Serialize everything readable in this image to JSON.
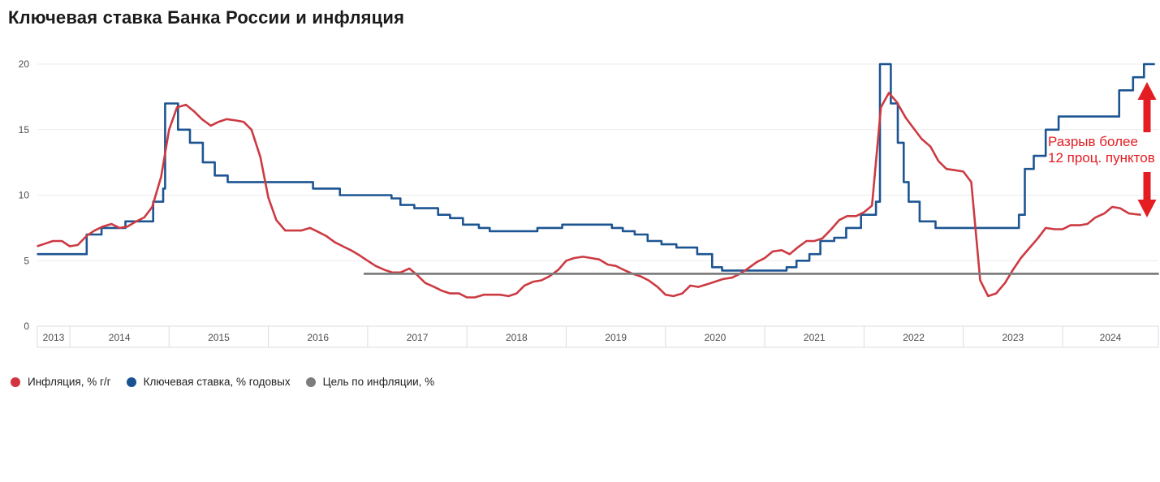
{
  "title": "Ключевая ставка Банка России и инфляция",
  "annotation": {
    "line1": "Разрыв более",
    "line2": "12 проц. пунктов",
    "color": "#e41d23"
  },
  "legend": {
    "position": "bottom",
    "items": [
      {
        "label": "Инфляция, % г/г",
        "color": "#d2353f"
      },
      {
        "label": "Ключевая ставка, % годовых",
        "color": "#1a5291"
      },
      {
        "label": "Цель по инфляции, %",
        "color": "#7d7d7d"
      }
    ]
  },
  "chart_data": {
    "type": "line",
    "title": "Ключевая ставка Банка России и инфляция",
    "grid": true,
    "x_axis": {
      "ticks": [
        2013,
        2014,
        2015,
        2016,
        2017,
        2018,
        2019,
        2020,
        2021,
        2022,
        2023,
        2024
      ],
      "range": [
        2013.67,
        2024.97
      ]
    },
    "y_axis": {
      "ticks": [
        0,
        5,
        10,
        15,
        20
      ],
      "range": [
        0,
        20
      ]
    },
    "series": [
      {
        "name": "Ключевая ставка, % годовых",
        "type": "step",
        "color": "#1d5592",
        "points": [
          [
            2013.67,
            5.5
          ],
          [
            2014.17,
            7.0
          ],
          [
            2014.32,
            7.5
          ],
          [
            2014.56,
            8.0
          ],
          [
            2014.84,
            9.5
          ],
          [
            2014.94,
            10.5
          ],
          [
            2014.96,
            17.0
          ],
          [
            2015.09,
            15.0
          ],
          [
            2015.21,
            14.0
          ],
          [
            2015.34,
            12.5
          ],
          [
            2015.46,
            11.5
          ],
          [
            2015.59,
            11.0
          ],
          [
            2016.45,
            10.5
          ],
          [
            2016.72,
            10.0
          ],
          [
            2017.24,
            9.75
          ],
          [
            2017.33,
            9.25
          ],
          [
            2017.47,
            9.0
          ],
          [
            2017.71,
            8.5
          ],
          [
            2017.83,
            8.25
          ],
          [
            2017.96,
            7.75
          ],
          [
            2018.12,
            7.5
          ],
          [
            2018.23,
            7.25
          ],
          [
            2018.71,
            7.5
          ],
          [
            2018.96,
            7.75
          ],
          [
            2019.46,
            7.5
          ],
          [
            2019.57,
            7.25
          ],
          [
            2019.69,
            7.0
          ],
          [
            2019.82,
            6.5
          ],
          [
            2019.96,
            6.25
          ],
          [
            2020.11,
            6.0
          ],
          [
            2020.32,
            5.5
          ],
          [
            2020.47,
            4.5
          ],
          [
            2020.57,
            4.25
          ],
          [
            2021.22,
            4.5
          ],
          [
            2021.32,
            5.0
          ],
          [
            2021.45,
            5.5
          ],
          [
            2021.56,
            6.5
          ],
          [
            2021.7,
            6.75
          ],
          [
            2021.82,
            7.5
          ],
          [
            2021.97,
            8.5
          ],
          [
            2022.12,
            9.5
          ],
          [
            2022.16,
            20.0
          ],
          [
            2022.27,
            17.0
          ],
          [
            2022.34,
            14.0
          ],
          [
            2022.4,
            11.0
          ],
          [
            2022.45,
            9.5
          ],
          [
            2022.56,
            8.0
          ],
          [
            2022.72,
            7.5
          ],
          [
            2023.56,
            8.5
          ],
          [
            2023.62,
            12.0
          ],
          [
            2023.71,
            13.0
          ],
          [
            2023.83,
            15.0
          ],
          [
            2023.96,
            16.0
          ],
          [
            2024.57,
            18.0
          ],
          [
            2024.71,
            19.0
          ],
          [
            2024.82,
            20.0
          ],
          [
            2024.93,
            20.0
          ]
        ]
      },
      {
        "name": "Инфляция, % г/г",
        "type": "line",
        "color": "#cc3a42",
        "points": [
          [
            2013.67,
            6.1
          ],
          [
            2013.75,
            6.3
          ],
          [
            2013.83,
            6.5
          ],
          [
            2013.92,
            6.5
          ],
          [
            2014.0,
            6.1
          ],
          [
            2014.08,
            6.2
          ],
          [
            2014.17,
            6.9
          ],
          [
            2014.25,
            7.3
          ],
          [
            2014.33,
            7.6
          ],
          [
            2014.42,
            7.8
          ],
          [
            2014.5,
            7.5
          ],
          [
            2014.58,
            7.6
          ],
          [
            2014.67,
            8.0
          ],
          [
            2014.75,
            8.3
          ],
          [
            2014.83,
            9.1
          ],
          [
            2014.92,
            11.4
          ],
          [
            2015.0,
            15.0
          ],
          [
            2015.08,
            16.7
          ],
          [
            2015.17,
            16.9
          ],
          [
            2015.25,
            16.4
          ],
          [
            2015.33,
            15.8
          ],
          [
            2015.42,
            15.3
          ],
          [
            2015.5,
            15.6
          ],
          [
            2015.58,
            15.8
          ],
          [
            2015.67,
            15.7
          ],
          [
            2015.75,
            15.6
          ],
          [
            2015.83,
            15.0
          ],
          [
            2015.92,
            12.9
          ],
          [
            2016.0,
            9.8
          ],
          [
            2016.08,
            8.1
          ],
          [
            2016.17,
            7.3
          ],
          [
            2016.25,
            7.3
          ],
          [
            2016.33,
            7.3
          ],
          [
            2016.42,
            7.5
          ],
          [
            2016.5,
            7.2
          ],
          [
            2016.58,
            6.9
          ],
          [
            2016.67,
            6.4
          ],
          [
            2016.75,
            6.1
          ],
          [
            2016.83,
            5.8
          ],
          [
            2016.92,
            5.4
          ],
          [
            2017.0,
            5.0
          ],
          [
            2017.08,
            4.6
          ],
          [
            2017.17,
            4.3
          ],
          [
            2017.25,
            4.1
          ],
          [
            2017.33,
            4.1
          ],
          [
            2017.42,
            4.4
          ],
          [
            2017.5,
            3.9
          ],
          [
            2017.58,
            3.3
          ],
          [
            2017.67,
            3.0
          ],
          [
            2017.75,
            2.7
          ],
          [
            2017.83,
            2.5
          ],
          [
            2017.92,
            2.5
          ],
          [
            2018.0,
            2.2
          ],
          [
            2018.08,
            2.2
          ],
          [
            2018.17,
            2.4
          ],
          [
            2018.25,
            2.4
          ],
          [
            2018.33,
            2.4
          ],
          [
            2018.42,
            2.3
          ],
          [
            2018.5,
            2.5
          ],
          [
            2018.58,
            3.1
          ],
          [
            2018.67,
            3.4
          ],
          [
            2018.75,
            3.5
          ],
          [
            2018.83,
            3.8
          ],
          [
            2018.92,
            4.3
          ],
          [
            2019.0,
            5.0
          ],
          [
            2019.08,
            5.2
          ],
          [
            2019.17,
            5.3
          ],
          [
            2019.25,
            5.2
          ],
          [
            2019.33,
            5.1
          ],
          [
            2019.42,
            4.7
          ],
          [
            2019.5,
            4.6
          ],
          [
            2019.58,
            4.3
          ],
          [
            2019.67,
            4.0
          ],
          [
            2019.75,
            3.8
          ],
          [
            2019.83,
            3.5
          ],
          [
            2019.92,
            3.0
          ],
          [
            2020.0,
            2.4
          ],
          [
            2020.08,
            2.3
          ],
          [
            2020.17,
            2.5
          ],
          [
            2020.25,
            3.1
          ],
          [
            2020.33,
            3.0
          ],
          [
            2020.42,
            3.2
          ],
          [
            2020.5,
            3.4
          ],
          [
            2020.58,
            3.6
          ],
          [
            2020.67,
            3.7
          ],
          [
            2020.75,
            4.0
          ],
          [
            2020.83,
            4.4
          ],
          [
            2020.92,
            4.9
          ],
          [
            2021.0,
            5.2
          ],
          [
            2021.08,
            5.7
          ],
          [
            2021.17,
            5.8
          ],
          [
            2021.25,
            5.5
          ],
          [
            2021.33,
            6.0
          ],
          [
            2021.42,
            6.5
          ],
          [
            2021.5,
            6.5
          ],
          [
            2021.58,
            6.7
          ],
          [
            2021.67,
            7.4
          ],
          [
            2021.75,
            8.1
          ],
          [
            2021.83,
            8.4
          ],
          [
            2021.92,
            8.4
          ],
          [
            2022.0,
            8.7
          ],
          [
            2022.08,
            9.2
          ],
          [
            2022.17,
            16.7
          ],
          [
            2022.25,
            17.8
          ],
          [
            2022.33,
            17.1
          ],
          [
            2022.42,
            15.9
          ],
          [
            2022.5,
            15.1
          ],
          [
            2022.58,
            14.3
          ],
          [
            2022.67,
            13.7
          ],
          [
            2022.75,
            12.6
          ],
          [
            2022.83,
            12.0
          ],
          [
            2022.92,
            11.9
          ],
          [
            2023.0,
            11.8
          ],
          [
            2023.08,
            11.0
          ],
          [
            2023.17,
            3.5
          ],
          [
            2023.25,
            2.3
          ],
          [
            2023.33,
            2.5
          ],
          [
            2023.42,
            3.3
          ],
          [
            2023.5,
            4.3
          ],
          [
            2023.58,
            5.2
          ],
          [
            2023.67,
            6.0
          ],
          [
            2023.75,
            6.7
          ],
          [
            2023.83,
            7.5
          ],
          [
            2023.92,
            7.4
          ],
          [
            2024.0,
            7.4
          ],
          [
            2024.08,
            7.7
          ],
          [
            2024.17,
            7.7
          ],
          [
            2024.25,
            7.8
          ],
          [
            2024.33,
            8.3
          ],
          [
            2024.42,
            8.6
          ],
          [
            2024.5,
            9.1
          ],
          [
            2024.58,
            9.0
          ],
          [
            2024.67,
            8.6
          ],
          [
            2024.79,
            8.5
          ]
        ]
      },
      {
        "name": "Цель по инфляции, %",
        "type": "line",
        "color": "#7d7d7d",
        "points": [
          [
            2016.96,
            4
          ],
          [
            2024.97,
            4
          ]
        ]
      }
    ]
  }
}
